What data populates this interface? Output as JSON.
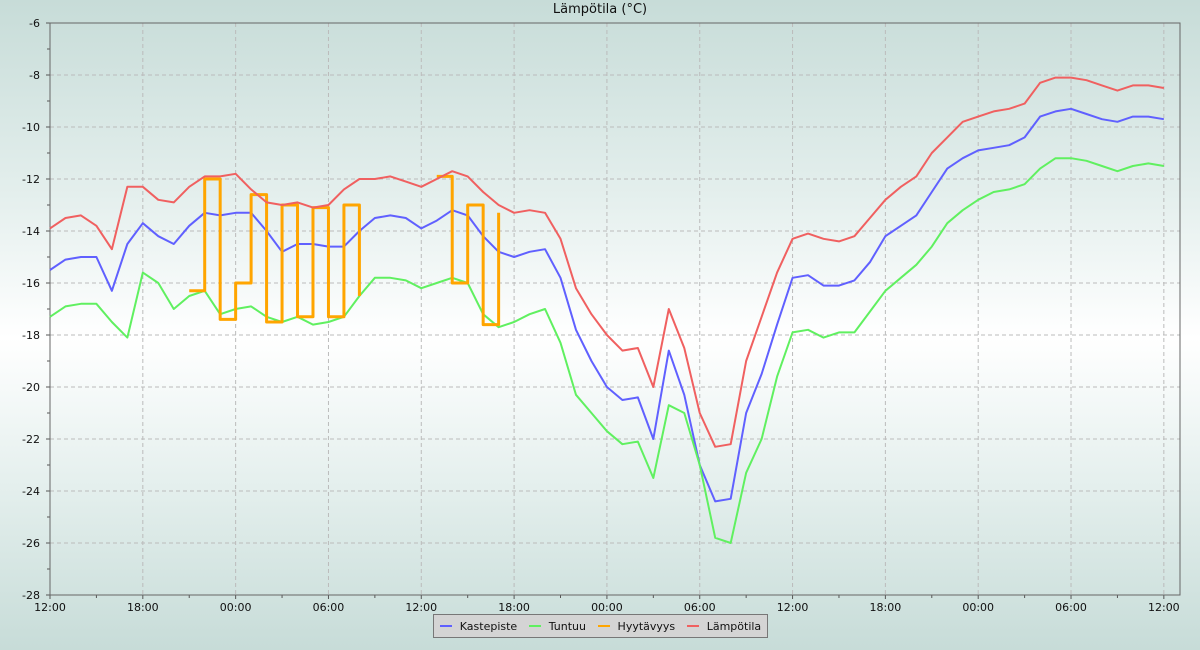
{
  "chart_data": {
    "type": "line",
    "title": "Lämpötila (°C)",
    "xlabel": "",
    "ylabel": "",
    "ylim": [
      -28,
      -6
    ],
    "yticks": [
      "-6",
      "-8",
      "-10",
      "-12",
      "-14",
      "-16",
      "-18",
      "-20",
      "-22",
      "-24",
      "-26",
      "-28"
    ],
    "xticks": [
      "12:00",
      "18:00",
      "00:00",
      "06:00",
      "12:00",
      "18:00",
      "00:00",
      "06:00",
      "12:00",
      "18:00",
      "00:00",
      "06:00",
      "12:00"
    ],
    "grid": true,
    "legend": "bottom",
    "x": [
      "12:00",
      "13:00",
      "14:00",
      "15:00",
      "16:00",
      "17:00",
      "18:00",
      "19:00",
      "20:00",
      "21:00",
      "22:00",
      "23:00",
      "00:00",
      "01:00",
      "02:00",
      "03:00",
      "04:00",
      "05:00",
      "06:00",
      "07:00",
      "08:00",
      "09:00",
      "10:00",
      "11:00",
      "12:00",
      "13:00",
      "14:00",
      "15:00",
      "16:00",
      "17:00",
      "18:00",
      "19:00",
      "20:00",
      "21:00",
      "22:00",
      "23:00",
      "00:00",
      "01:00",
      "02:00",
      "03:00",
      "04:00",
      "05:00",
      "06:00",
      "07:00",
      "08:00",
      "09:00",
      "10:00",
      "11:00",
      "12:00",
      "13:00",
      "14:00",
      "15:00",
      "16:00",
      "17:00",
      "18:00",
      "19:00",
      "20:00",
      "21:00",
      "22:00",
      "23:00",
      "00:00",
      "01:00",
      "02:00",
      "03:00",
      "04:00",
      "05:00",
      "06:00",
      "07:00",
      "08:00",
      "09:00",
      "10:00",
      "11:00",
      "12:00"
    ],
    "series": [
      {
        "name": "Kastepiste",
        "color": "#6060ff",
        "values": [
          -15.5,
          -15.1,
          -15.0,
          -15.0,
          -16.3,
          -14.5,
          -13.7,
          -14.2,
          -14.5,
          -13.8,
          -13.3,
          -13.4,
          -13.3,
          -13.3,
          -14.0,
          -14.8,
          -14.5,
          -14.5,
          -14.6,
          -14.6,
          -14.0,
          -13.5,
          -13.4,
          -13.5,
          -13.9,
          -13.6,
          -13.2,
          -13.4,
          -14.2,
          -14.8,
          -15.0,
          -14.8,
          -14.7,
          -15.8,
          -17.8,
          -19.0,
          -20.0,
          -20.5,
          -20.4,
          -22.0,
          -18.6,
          -20.3,
          -23.0,
          -24.4,
          -24.3,
          -21.0,
          -19.5,
          -17.6,
          -15.8,
          -15.7,
          -16.1,
          -16.1,
          -15.9,
          -15.2,
          -14.2,
          -13.8,
          -13.4,
          -12.5,
          -11.6,
          -11.2,
          -10.9,
          -10.8,
          -10.7,
          -10.4,
          -9.6,
          -9.4,
          -9.3,
          -9.5,
          -9.7,
          -9.8,
          -9.6,
          -9.6,
          -9.7
        ]
      },
      {
        "name": "Tuntuu",
        "color": "#60f060",
        "values": [
          -17.3,
          -16.9,
          -16.8,
          -16.8,
          -17.5,
          -18.1,
          -15.6,
          -16.0,
          -17.0,
          -16.5,
          -16.3,
          -17.2,
          -17.0,
          -16.9,
          -17.3,
          -17.5,
          -17.3,
          -17.6,
          -17.5,
          -17.3,
          -16.5,
          -15.8,
          -15.8,
          -15.9,
          -16.2,
          -16.0,
          -15.8,
          -16.0,
          -17.2,
          -17.7,
          -17.5,
          -17.2,
          -17.0,
          -18.3,
          -20.3,
          -21.0,
          -21.7,
          -22.2,
          -22.1,
          -23.5,
          -20.7,
          -21.0,
          -23.0,
          -25.8,
          -26.0,
          -23.3,
          -22.0,
          -19.6,
          -17.9,
          -17.8,
          -18.1,
          -17.9,
          -17.9,
          -17.1,
          -16.3,
          -15.8,
          -15.3,
          -14.6,
          -13.7,
          -13.2,
          -12.8,
          -12.5,
          -12.4,
          -12.2,
          -11.6,
          -11.2,
          -11.2,
          -11.3,
          -11.5,
          -11.7,
          -11.5,
          -11.4,
          -11.5
        ]
      },
      {
        "name": "Hyytävyys",
        "color": "#ffa500",
        "values": [
          null,
          null,
          null,
          null,
          null,
          null,
          null,
          null,
          null,
          -16.3,
          -12.0,
          -17.4,
          -16.0,
          -12.6,
          -17.5,
          -13.0,
          -17.3,
          -13.1,
          -17.3,
          -13.0,
          -16.5,
          null,
          null,
          null,
          null,
          -11.9,
          -16.0,
          -13.0,
          -17.6,
          -13.3,
          null,
          null,
          null,
          null,
          null,
          null,
          null,
          null,
          null,
          null,
          null,
          null,
          null,
          null,
          null,
          null,
          null,
          null,
          null,
          null,
          null,
          null,
          null,
          null,
          null,
          null,
          null,
          null,
          null,
          null,
          null,
          null,
          null,
          null,
          null,
          null,
          null,
          null,
          null,
          null,
          null,
          null,
          null
        ]
      },
      {
        "name": "Lämpötila",
        "color": "#f06060",
        "values": [
          -13.9,
          -13.5,
          -13.4,
          -13.8,
          -14.7,
          -12.3,
          -12.3,
          -12.8,
          -12.9,
          -12.3,
          -11.9,
          -11.9,
          -11.8,
          -12.4,
          -12.9,
          -13.0,
          -12.9,
          -13.1,
          -13.0,
          -12.4,
          -12.0,
          -12.0,
          -11.9,
          -12.1,
          -12.3,
          -12.0,
          -11.7,
          -11.9,
          -12.5,
          -13.0,
          -13.3,
          -13.2,
          -13.3,
          -14.3,
          -16.2,
          -17.2,
          -18.0,
          -18.6,
          -18.5,
          -20.0,
          -17.0,
          -18.5,
          -21.0,
          -22.3,
          -22.2,
          -19.0,
          -17.3,
          -15.6,
          -14.3,
          -14.1,
          -14.3,
          -14.4,
          -14.2,
          -13.5,
          -12.8,
          -12.3,
          -11.9,
          -11.0,
          -10.4,
          -9.8,
          -9.6,
          -9.4,
          -9.3,
          -9.1,
          -8.3,
          -8.1,
          -8.1,
          -8.2,
          -8.4,
          -8.6,
          -8.4,
          -8.4,
          -8.5
        ]
      }
    ]
  }
}
